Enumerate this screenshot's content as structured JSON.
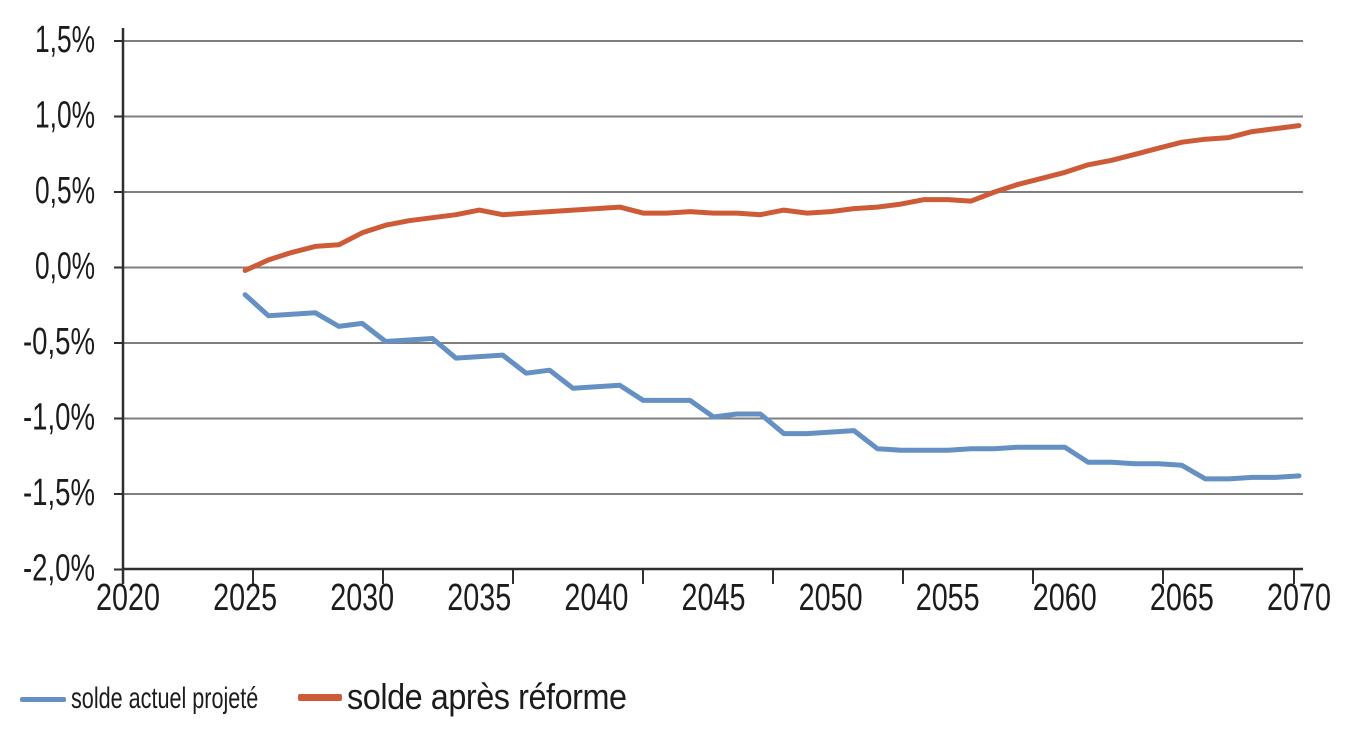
{
  "axes": {
    "y_labels": [
      "1,5%",
      "1,0%",
      "0,5%",
      "0,0%",
      "-0,5%",
      "-1,0%",
      "-1,5%",
      "-2,0%"
    ],
    "y_values": [
      1.5,
      1.0,
      0.5,
      0.0,
      -0.5,
      -1.0,
      -1.5,
      -2.0
    ],
    "x_labels": [
      "2020",
      "2025",
      "2030",
      "2035",
      "2040",
      "2045",
      "2050",
      "2055",
      "2060",
      "2065",
      "2070"
    ],
    "x_label_years": [
      2020,
      2025,
      2030,
      2035,
      2040,
      2045,
      2050,
      2055,
      2060,
      2065,
      2070
    ]
  },
  "colors": {
    "grid": "#7f7f7f",
    "axis": "#2f2f2f",
    "text": "#1c1c1c",
    "series1": "#6590C4",
    "series2": "#CE5B38"
  },
  "chart_data": {
    "type": "line",
    "title": "",
    "xlabel": "",
    "ylabel": "",
    "xlim": [
      2020,
      2070
    ],
    "ylim": [
      -2.0,
      1.5
    ],
    "y_tick_step": 0.5,
    "unit": "% (percent of GDP, comma-decimal French format)",
    "grid": true,
    "legend_position": "bottom-left",
    "x": [
      2025,
      2026,
      2027,
      2028,
      2029,
      2030,
      2031,
      2032,
      2033,
      2034,
      2035,
      2036,
      2037,
      2038,
      2039,
      2040,
      2041,
      2042,
      2043,
      2044,
      2045,
      2046,
      2047,
      2048,
      2049,
      2050,
      2051,
      2052,
      2053,
      2054,
      2055,
      2056,
      2057,
      2058,
      2059,
      2060,
      2061,
      2062,
      2063,
      2064,
      2065,
      2066,
      2067,
      2068,
      2069,
      2070
    ],
    "series": [
      {
        "name": "solde actuel projeté",
        "color": "#6590C4",
        "values": [
          -0.18,
          -0.32,
          -0.31,
          -0.3,
          -0.39,
          -0.37,
          -0.49,
          -0.48,
          -0.47,
          -0.6,
          -0.59,
          -0.58,
          -0.7,
          -0.68,
          -0.8,
          -0.79,
          -0.78,
          -0.88,
          -0.88,
          -0.88,
          -0.99,
          -0.97,
          -0.97,
          -1.1,
          -1.1,
          -1.09,
          -1.08,
          -1.2,
          -1.21,
          -1.21,
          -1.21,
          -1.2,
          -1.2,
          -1.19,
          -1.19,
          -1.19,
          -1.29,
          -1.29,
          -1.3,
          -1.3,
          -1.31,
          -1.4,
          -1.4,
          -1.39,
          -1.39,
          -1.38
        ]
      },
      {
        "name": "solde après réforme",
        "color": "#CE5B38",
        "values": [
          -0.02,
          0.05,
          0.1,
          0.14,
          0.15,
          0.23,
          0.28,
          0.31,
          0.33,
          0.35,
          0.38,
          0.35,
          0.36,
          0.37,
          0.38,
          0.39,
          0.4,
          0.36,
          0.36,
          0.37,
          0.36,
          0.36,
          0.35,
          0.38,
          0.36,
          0.37,
          0.39,
          0.4,
          0.42,
          0.45,
          0.45,
          0.44,
          0.5,
          0.55,
          0.59,
          0.63,
          0.68,
          0.71,
          0.75,
          0.79,
          0.83,
          0.85,
          0.86,
          0.9,
          0.92,
          0.94
        ]
      }
    ]
  }
}
